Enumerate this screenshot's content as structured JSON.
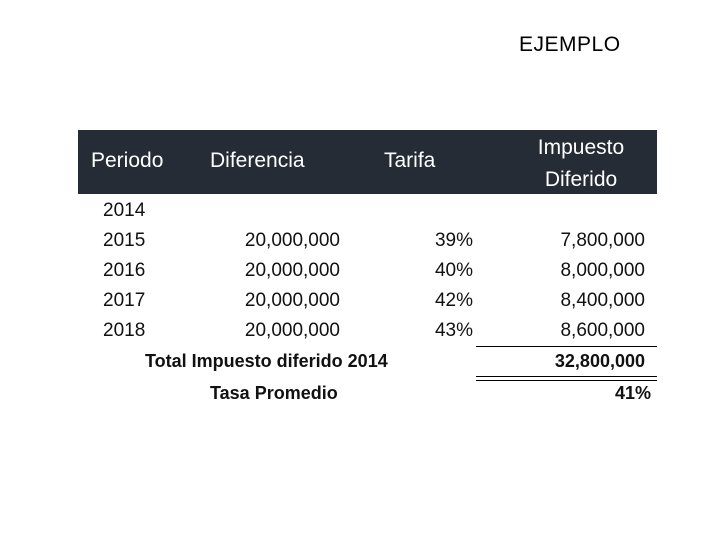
{
  "slide": {
    "title": "EJEMPLO"
  },
  "table": {
    "headers": {
      "periodo": "Periodo",
      "diferencia": "Diferencia",
      "tarifa": "Tarifa",
      "impuesto_line1": "Impuesto",
      "impuesto_line2": "Diferido"
    },
    "rows": [
      {
        "periodo": "2014",
        "diferencia": "",
        "tarifa": "",
        "impuesto": ""
      },
      {
        "periodo": "2015",
        "diferencia": "20,000,000",
        "tarifa": "39%",
        "impuesto": "7,800,000"
      },
      {
        "periodo": "2016",
        "diferencia": "20,000,000",
        "tarifa": "40%",
        "impuesto": "8,000,000"
      },
      {
        "periodo": "2017",
        "diferencia": "20,000,000",
        "tarifa": "42%",
        "impuesto": "8,400,000"
      },
      {
        "periodo": "2018",
        "diferencia": "20,000,000",
        "tarifa": "43%",
        "impuesto": "8,600,000"
      }
    ],
    "total": {
      "label": "Total Impuesto diferido 2014",
      "value": "32,800,000"
    },
    "average": {
      "label": "Tasa Promedio",
      "value": "41%"
    },
    "header_color": "#252c36"
  }
}
